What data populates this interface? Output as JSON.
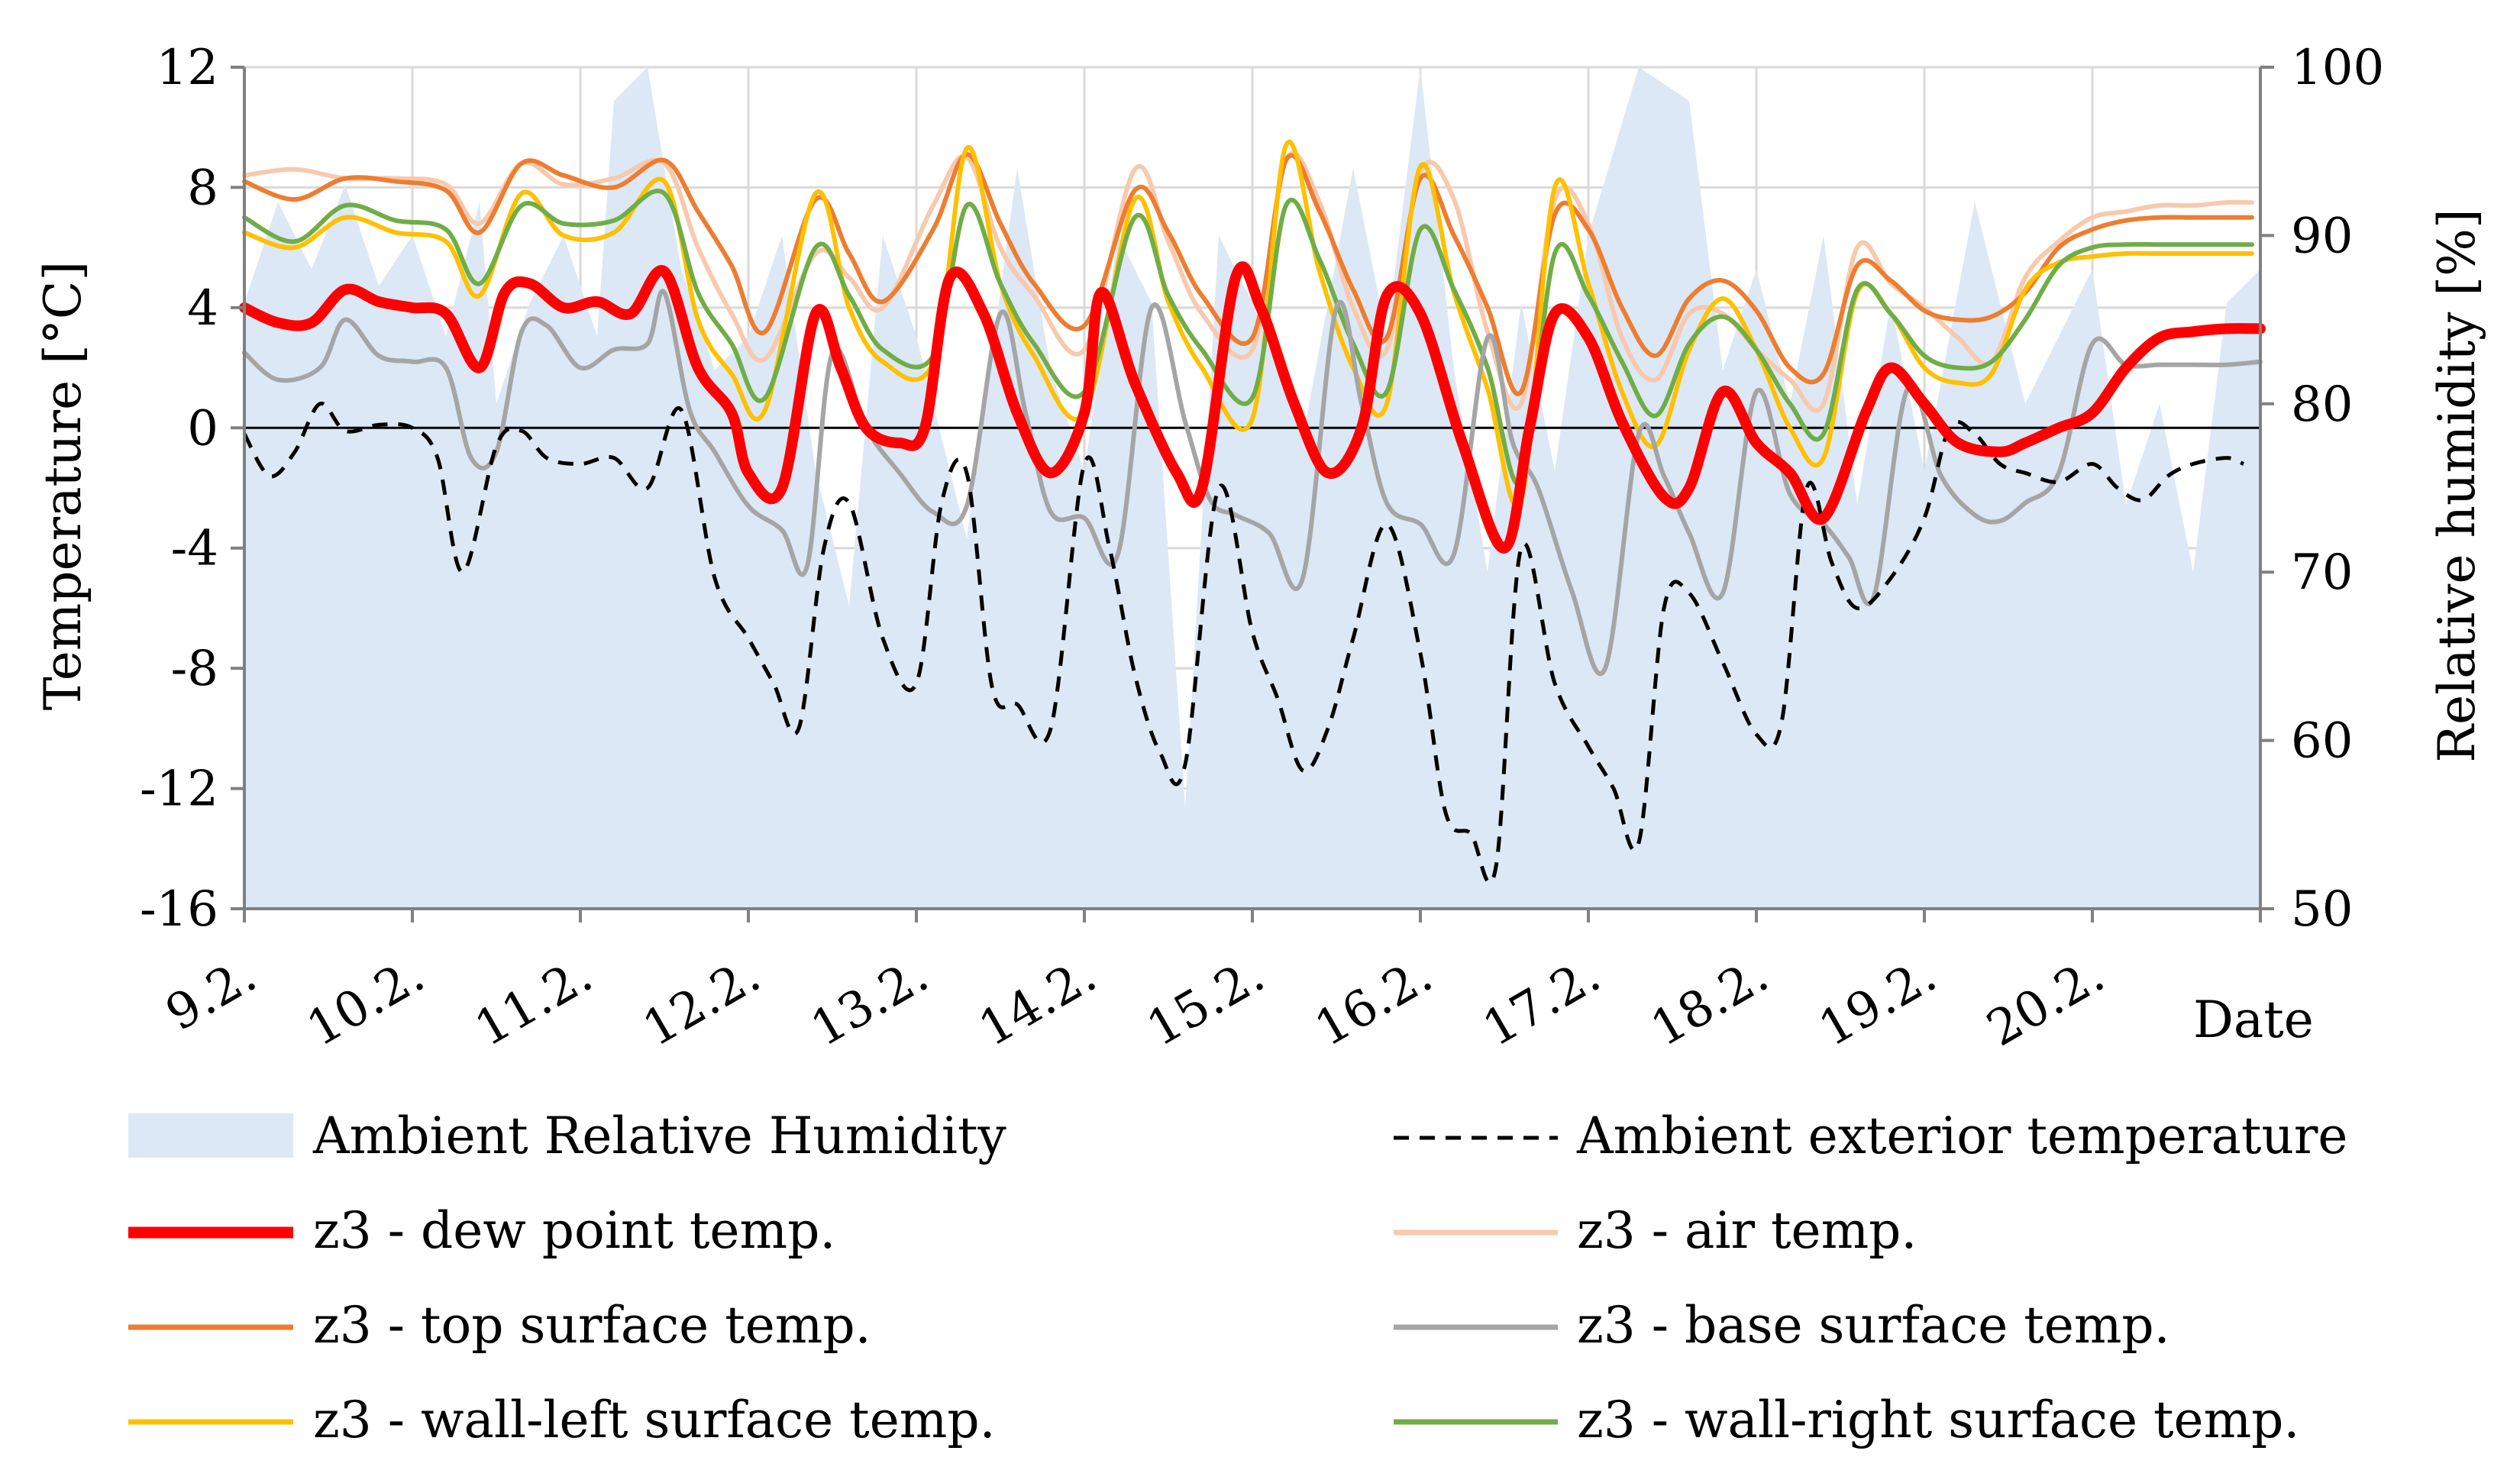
{
  "chart_data": {
    "type": "line",
    "xlabel": "Date",
    "ylabel": "Temperature [°C]",
    "y2label": "Relative humidity [%]",
    "x_ticks": [
      "9.2.",
      "10.2.",
      "11.2.",
      "12.2.",
      "13.2.",
      "14.2.",
      "15.2.",
      "16.2.",
      "17.2.",
      "18.2.",
      "19.2.",
      "20.2."
    ],
    "x_range": [
      0,
      12
    ],
    "ylim": [
      -16,
      12
    ],
    "y_ticks": [
      12,
      8,
      4,
      0,
      -4,
      -8,
      -12,
      -16
    ],
    "y2lim": [
      50,
      100
    ],
    "y2_ticks": [
      100,
      90,
      80,
      70,
      60,
      50
    ],
    "grid": true,
    "legend_position": "bottom",
    "colors": {
      "humidity": "#dce8f5",
      "exterior": "#000000",
      "dew": "#ff0000",
      "air": "#f8c9ad",
      "top": "#ed7d31",
      "base": "#a5a5a5",
      "wall_left": "#ffc000",
      "wall_right": "#70ad47",
      "grid": "#d9d9d9",
      "axis": "#808080"
    },
    "humidity_series": {
      "name": "Ambient Relative Humidity",
      "axis": "right",
      "x": [
        0,
        0.2,
        0.4,
        0.6,
        0.8,
        1.0,
        1.2,
        1.4,
        1.5,
        1.7,
        1.9,
        2.1,
        2.2,
        2.4,
        2.6,
        2.8,
        3.0,
        3.2,
        3.4,
        3.6,
        3.8,
        4.0,
        4.3,
        4.6,
        4.8,
        5.0,
        5.2,
        5.4,
        5.6,
        5.8,
        6.0,
        6.3,
        6.6,
        6.8,
        7.0,
        7.2,
        7.4,
        7.6,
        7.8,
        8.0,
        8.3,
        8.6,
        8.8,
        9.0,
        9.2,
        9.4,
        9.6,
        9.8,
        10.0,
        10.3,
        10.6,
        10.8,
        11.0,
        11.2,
        11.4,
        11.6,
        11.8,
        12.0
      ],
      "values": [
        86,
        92,
        88,
        93,
        87,
        90,
        84,
        92,
        80,
        86,
        90,
        84,
        98,
        100,
        88,
        82,
        84,
        90,
        76,
        68,
        90,
        84,
        72,
        94,
        82,
        76,
        90,
        86,
        56,
        90,
        86,
        78,
        94,
        84,
        100,
        82,
        70,
        86,
        76,
        90,
        100,
        98,
        82,
        88,
        80,
        90,
        74,
        86,
        76,
        92,
        80,
        84,
        88,
        74,
        80,
        70,
        86,
        88
      ]
    },
    "series": [
      {
        "key": "exterior",
        "name": "Ambient exterior temperature",
        "x": [
          0,
          0.15,
          0.3,
          0.45,
          0.6,
          0.8,
          1.0,
          1.15,
          1.3,
          1.5,
          1.65,
          1.8,
          2.0,
          2.2,
          2.4,
          2.6,
          2.8,
          3.0,
          3.15,
          3.3,
          3.45,
          3.6,
          3.8,
          4.0,
          4.15,
          4.3,
          4.45,
          4.6,
          4.8,
          5.0,
          5.15,
          5.3,
          5.45,
          5.6,
          5.8,
          6.0,
          6.15,
          6.3,
          6.45,
          6.6,
          6.8,
          7.0,
          7.15,
          7.3,
          7.45,
          7.6,
          7.8,
          8.0,
          8.15,
          8.3,
          8.45,
          8.6,
          8.8,
          9.0,
          9.15,
          9.3,
          9.45,
          9.6,
          9.8,
          10.0,
          10.15,
          10.3,
          10.45,
          10.6,
          10.8,
          11.0,
          11.15,
          11.3,
          11.45,
          11.6,
          11.8,
          11.9
        ],
        "values": [
          -0.2,
          -1.6,
          -0.8,
          0.8,
          -0.1,
          0.1,
          0.0,
          -1.0,
          -4.8,
          -0.6,
          -0.1,
          -1.0,
          -1.2,
          -1.0,
          -2.0,
          0.6,
          -5.0,
          -7.0,
          -8.5,
          -10.0,
          -4.0,
          -2.5,
          -7.0,
          -8.5,
          -2.5,
          -1.5,
          -8.6,
          -9.2,
          -10.0,
          -1.2,
          -4.0,
          -8.2,
          -10.8,
          -11.2,
          -2.0,
          -6.8,
          -9.0,
          -11.4,
          -10.0,
          -7.0,
          -3.2,
          -7.5,
          -12.8,
          -13.5,
          -14.6,
          -4.0,
          -8.5,
          -10.6,
          -12.0,
          -13.8,
          -6.0,
          -5.5,
          -7.8,
          -10.2,
          -9.8,
          -2.0,
          -4.5,
          -6.0,
          -5.0,
          -3.0,
          0.0,
          -0.2,
          -1.2,
          -1.5,
          -1.8,
          -1.2,
          -2.0,
          -2.4,
          -1.6,
          -1.2,
          -1.0,
          -1.2
        ]
      },
      {
        "key": "dew",
        "name": "z3 - dew point temp.",
        "x": [
          0,
          0.2,
          0.4,
          0.6,
          0.8,
          1.0,
          1.2,
          1.4,
          1.55,
          1.7,
          1.9,
          2.1,
          2.3,
          2.5,
          2.7,
          2.9,
          3.0,
          3.2,
          3.4,
          3.55,
          3.7,
          3.9,
          4.05,
          4.2,
          4.4,
          4.6,
          4.8,
          5.0,
          5.1,
          5.3,
          5.55,
          5.7,
          5.9,
          6.05,
          6.25,
          6.45,
          6.65,
          6.8,
          7.0,
          7.25,
          7.5,
          7.65,
          7.8,
          8.0,
          8.2,
          8.45,
          8.6,
          8.8,
          9.0,
          9.2,
          9.4,
          9.65,
          9.8,
          10.0,
          10.2,
          10.45,
          10.6,
          10.8,
          11.0,
          11.2,
          11.4,
          11.6,
          11.8,
          12.0
        ],
        "values": [
          4.0,
          3.5,
          3.5,
          4.6,
          4.2,
          4.0,
          3.8,
          2.0,
          4.5,
          4.8,
          4.0,
          4.2,
          3.8,
          5.2,
          2.0,
          0.5,
          -1.5,
          -2.0,
          3.8,
          2.0,
          0.0,
          -0.5,
          0.0,
          5.0,
          3.8,
          0.5,
          -1.5,
          0.5,
          4.5,
          1.5,
          -1.5,
          -2.0,
          5.0,
          4.0,
          0.8,
          -1.5,
          0.0,
          4.4,
          3.8,
          -0.5,
          -4.0,
          0.0,
          3.8,
          3.0,
          0.2,
          -2.3,
          -2.0,
          1.2,
          -0.5,
          -1.5,
          -3.0,
          0.5,
          2.0,
          0.8,
          -0.5,
          -0.8,
          -0.5,
          0.0,
          0.5,
          2.0,
          3.0,
          3.2,
          3.3,
          3.3
        ]
      },
      {
        "key": "air",
        "name": "z3 - air temp.",
        "x": [
          0,
          0.3,
          0.6,
          0.9,
          1.2,
          1.4,
          1.65,
          1.9,
          2.2,
          2.5,
          2.7,
          2.9,
          3.1,
          3.4,
          3.6,
          3.8,
          4.1,
          4.3,
          4.5,
          4.7,
          5.0,
          5.3,
          5.5,
          5.7,
          6.0,
          6.2,
          6.4,
          6.6,
          6.8,
          7.0,
          7.2,
          7.4,
          7.6,
          7.8,
          8.0,
          8.2,
          8.4,
          8.6,
          8.8,
          9.0,
          9.2,
          9.4,
          9.6,
          9.8,
          10.0,
          10.2,
          10.4,
          10.6,
          10.8,
          11.0,
          11.2,
          11.4,
          11.6,
          11.8,
          11.95
        ],
        "values": [
          8.4,
          8.6,
          8.3,
          8.3,
          8.1,
          6.8,
          8.8,
          8.1,
          8.3,
          8.8,
          6.0,
          3.8,
          2.3,
          5.8,
          5.0,
          4.0,
          7.4,
          9.0,
          6.0,
          4.4,
          2.6,
          8.6,
          6.2,
          3.8,
          2.6,
          8.9,
          7.5,
          4.0,
          2.6,
          8.5,
          7.6,
          3.2,
          0.8,
          7.6,
          6.8,
          3.0,
          1.6,
          3.8,
          3.8,
          2.6,
          1.6,
          0.8,
          6.0,
          4.8,
          4.0,
          3.0,
          2.2,
          5.0,
          6.2,
          7.0,
          7.2,
          7.4,
          7.4,
          7.5,
          7.5
        ]
      },
      {
        "key": "top",
        "name": "z3 - top surface temp.",
        "x": [
          0,
          0.3,
          0.6,
          0.9,
          1.2,
          1.4,
          1.65,
          1.9,
          2.2,
          2.5,
          2.7,
          2.9,
          3.1,
          3.4,
          3.6,
          3.8,
          4.1,
          4.3,
          4.5,
          4.7,
          5.0,
          5.3,
          5.5,
          5.7,
          6.0,
          6.2,
          6.4,
          6.6,
          6.8,
          7.0,
          7.2,
          7.4,
          7.6,
          7.8,
          8.0,
          8.2,
          8.4,
          8.6,
          8.8,
          9.0,
          9.2,
          9.4,
          9.6,
          9.8,
          10.0,
          10.2,
          10.4,
          10.6,
          10.8,
          11.0,
          11.2,
          11.4,
          11.6,
          11.8,
          11.95
        ],
        "values": [
          8.2,
          7.6,
          8.3,
          8.2,
          7.9,
          6.5,
          8.8,
          8.4,
          8.0,
          8.9,
          7.2,
          5.4,
          3.2,
          7.6,
          5.8,
          4.2,
          6.6,
          9.1,
          6.8,
          4.8,
          3.4,
          7.9,
          6.5,
          4.4,
          3.0,
          8.9,
          7.2,
          4.6,
          3.0,
          8.3,
          6.4,
          4.0,
          1.2,
          7.1,
          6.6,
          4.0,
          2.4,
          4.3,
          4.9,
          3.9,
          2.0,
          1.8,
          5.4,
          4.9,
          3.9,
          3.6,
          3.7,
          4.5,
          6.0,
          6.6,
          6.9,
          7.0,
          7.0,
          7.0,
          7.0
        ]
      },
      {
        "key": "base",
        "name": "z3 - base surface temp.",
        "x": [
          0,
          0.2,
          0.45,
          0.6,
          0.8,
          1.0,
          1.2,
          1.35,
          1.5,
          1.65,
          1.8,
          2.0,
          2.2,
          2.4,
          2.5,
          2.65,
          2.8,
          3.0,
          3.2,
          3.35,
          3.5,
          3.7,
          3.9,
          4.1,
          4.3,
          4.5,
          4.65,
          4.8,
          5.0,
          5.2,
          5.4,
          5.6,
          5.75,
          5.9,
          6.1,
          6.3,
          6.5,
          6.65,
          6.8,
          7.0,
          7.2,
          7.4,
          7.55,
          7.7,
          7.9,
          8.1,
          8.3,
          8.45,
          8.6,
          8.8,
          9.0,
          9.2,
          9.4,
          9.55,
          9.7,
          9.9,
          10.1,
          10.3,
          10.45,
          10.6,
          10.8,
          11.0,
          11.2,
          11.4,
          11.6,
          11.8,
          12.0
        ],
        "values": [
          2.5,
          1.6,
          2.0,
          3.6,
          2.4,
          2.2,
          2.0,
          -1.0,
          -0.8,
          3.2,
          3.4,
          2.0,
          2.6,
          2.8,
          4.5,
          0.6,
          -0.8,
          -2.6,
          -3.4,
          -4.6,
          2.5,
          0.0,
          -1.5,
          -2.8,
          -2.6,
          3.8,
          0.5,
          -2.8,
          -3.0,
          -4.2,
          4.0,
          0.2,
          -2.4,
          -2.9,
          -3.5,
          -5.0,
          4.0,
          0.8,
          -2.5,
          -3.2,
          -4.2,
          3.0,
          -0.5,
          -2.0,
          -5.4,
          -8.0,
          -0.2,
          -1.6,
          -3.5,
          -5.5,
          1.2,
          -2.2,
          -3.2,
          -4.3,
          -5.6,
          1.3,
          -1.6,
          -2.9,
          -3.1,
          -2.5,
          -1.5,
          2.8,
          2.1,
          2.1,
          2.1,
          2.1,
          2.2
        ]
      },
      {
        "key": "wall_left",
        "name": "z3 - wall-left surface temp.",
        "x": [
          0,
          0.3,
          0.6,
          0.9,
          1.2,
          1.4,
          1.65,
          1.9,
          2.2,
          2.5,
          2.7,
          2.9,
          3.1,
          3.4,
          3.6,
          3.8,
          4.1,
          4.3,
          4.5,
          4.7,
          5.0,
          5.3,
          5.5,
          5.7,
          6.0,
          6.2,
          6.4,
          6.6,
          6.8,
          7.0,
          7.2,
          7.4,
          7.6,
          7.8,
          8.0,
          8.2,
          8.4,
          8.6,
          8.8,
          9.0,
          9.2,
          9.4,
          9.6,
          9.8,
          10.0,
          10.2,
          10.4,
          10.6,
          10.8,
          11.0,
          11.2,
          11.4,
          11.6,
          11.8,
          11.95
        ],
        "values": [
          6.5,
          6.0,
          7.0,
          6.5,
          6.2,
          4.4,
          7.8,
          6.4,
          6.5,
          8.2,
          3.6,
          1.8,
          0.6,
          7.8,
          4.0,
          2.2,
          2.2,
          9.3,
          4.8,
          2.4,
          0.5,
          7.6,
          4.2,
          2.0,
          0.3,
          9.4,
          5.2,
          2.0,
          0.8,
          8.7,
          4.5,
          1.3,
          -2.4,
          8.0,
          4.8,
          1.2,
          -0.6,
          2.6,
          4.3,
          2.6,
          0.0,
          -1.0,
          4.5,
          3.8,
          2.0,
          1.5,
          1.8,
          4.6,
          5.5,
          5.7,
          5.8,
          5.8,
          5.8,
          5.8,
          5.8
        ]
      },
      {
        "key": "wall_right",
        "name": "z3 - wall-right surface temp.",
        "x": [
          0,
          0.3,
          0.6,
          0.9,
          1.2,
          1.4,
          1.65,
          1.9,
          2.2,
          2.5,
          2.7,
          2.9,
          3.1,
          3.4,
          3.6,
          3.8,
          4.1,
          4.3,
          4.5,
          4.7,
          5.0,
          5.3,
          5.5,
          5.7,
          6.0,
          6.2,
          6.4,
          6.6,
          6.8,
          7.0,
          7.2,
          7.4,
          7.6,
          7.8,
          8.0,
          8.2,
          8.4,
          8.6,
          8.8,
          9.0,
          9.2,
          9.4,
          9.6,
          9.8,
          10.0,
          10.2,
          10.4,
          10.6,
          10.8,
          11.0,
          11.2,
          11.4,
          11.6,
          11.8,
          11.95
        ],
        "values": [
          7.0,
          6.2,
          7.4,
          6.9,
          6.6,
          4.8,
          7.4,
          6.8,
          6.9,
          7.8,
          4.5,
          2.8,
          1.0,
          6.0,
          4.4,
          2.6,
          2.4,
          7.4,
          4.8,
          2.8,
          1.2,
          7.0,
          4.4,
          2.6,
          1.0,
          7.4,
          5.6,
          2.8,
          1.2,
          6.6,
          4.6,
          2.0,
          -1.8,
          5.8,
          4.4,
          2.2,
          0.4,
          2.8,
          3.7,
          2.6,
          0.8,
          -0.2,
          4.6,
          3.8,
          2.4,
          2.0,
          2.2,
          3.6,
          5.4,
          6.0,
          6.1,
          6.1,
          6.1,
          6.1,
          6.1
        ]
      }
    ]
  }
}
